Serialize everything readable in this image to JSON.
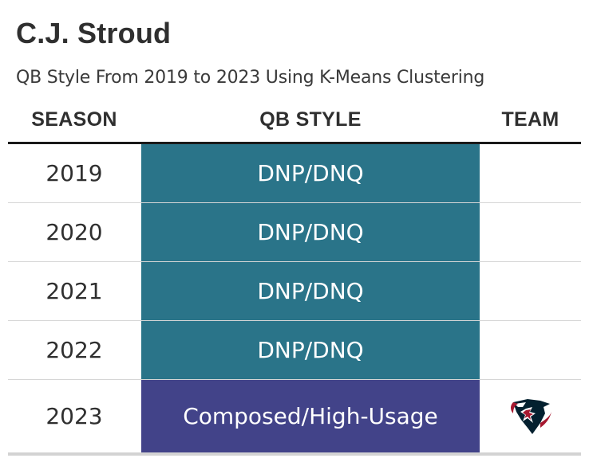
{
  "chart_data": {
    "type": "table",
    "title": "C.J. Stroud",
    "subtitle": "QB Style From 2019 to 2023 Using K-Means Clustering",
    "columns": [
      "SEASON",
      "QB STYLE",
      "TEAM"
    ],
    "rows": [
      {
        "season": "2019",
        "qb_style": "DNP/DNQ",
        "team": "",
        "style_color": "#2a7489"
      },
      {
        "season": "2020",
        "qb_style": "DNP/DNQ",
        "team": "",
        "style_color": "#2a7489"
      },
      {
        "season": "2021",
        "qb_style": "DNP/DNQ",
        "team": "",
        "style_color": "#2a7489"
      },
      {
        "season": "2022",
        "qb_style": "DNP/DNQ",
        "team": "",
        "style_color": "#2a7489"
      },
      {
        "season": "2023",
        "qb_style": "Composed/High-Usage",
        "team": "houston-texans-logo-icon",
        "style_color": "#424389"
      }
    ]
  }
}
